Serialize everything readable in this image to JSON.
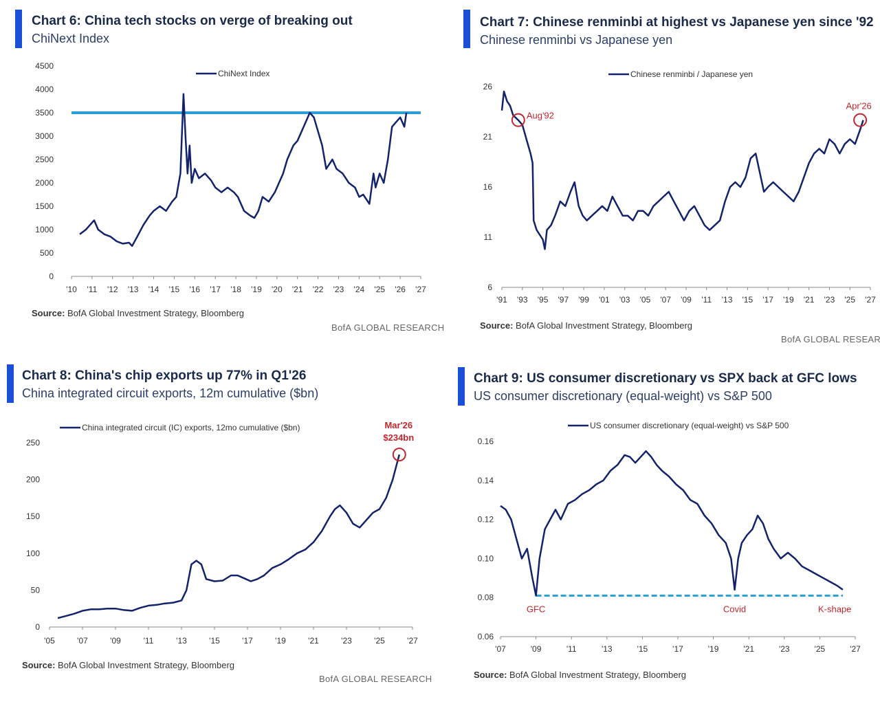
{
  "charts": [
    {
      "title": "Chart 6:  China tech stocks on verge of breaking out",
      "subtitle": "ChiNext Index",
      "source_label": "Source:",
      "source_text": "BofA Global Investment Strategy, Bloomberg",
      "brand": "BofA GLOBAL RESEARCH"
    },
    {
      "title": "Chart 7: Chinese renminbi at highest vs Japanese yen since '92",
      "subtitle": "Chinese renminbi vs Japanese yen",
      "source_label": "Source:",
      "source_text": "BofA Global Investment Strategy, Bloomberg",
      "brand": "BofA GLOBAL RESEARCH"
    },
    {
      "title": "Chart 8: China's chip exports up 77% in Q1'26",
      "subtitle": "China integrated circuit exports, 12m cumulative ($bn)",
      "source_label": "Source:",
      "source_text": "BofA Global Investment Strategy, Bloomberg",
      "brand": "BofA GLOBAL RESEARCH"
    },
    {
      "title": "Chart 9: US consumer discretionary vs SPX back at GFC lows",
      "subtitle": "US consumer discretionary (equal-weight) vs S&P 500",
      "source_label": "Source:",
      "source_text": "BofA Global Investment Strategy, Bloomberg",
      "brand": ""
    }
  ],
  "colors": {
    "line": "#12236b",
    "reference_line": "#2a9fd6",
    "dashed_line": "#2a9fd6",
    "annotation": "#c0262d",
    "title_bar": "#1b4fd6"
  },
  "chart_data": [
    {
      "type": "line",
      "series": [
        {
          "name": "ChiNext Index",
          "x": [
            2010.4,
            2010.7,
            2010.9,
            2011.1,
            2011.3,
            2011.6,
            2011.9,
            2012.2,
            2012.5,
            2012.8,
            2012.95,
            2013.2,
            2013.5,
            2013.8,
            2014.0,
            2014.3,
            2014.6,
            2014.9,
            2015.1,
            2015.3,
            2015.45,
            2015.55,
            2015.65,
            2015.75,
            2015.85,
            2016.0,
            2016.2,
            2016.5,
            2016.8,
            2017.0,
            2017.3,
            2017.6,
            2017.9,
            2018.1,
            2018.4,
            2018.7,
            2018.9,
            2019.1,
            2019.3,
            2019.6,
            2019.9,
            2020.1,
            2020.3,
            2020.5,
            2020.8,
            2021.0,
            2021.3,
            2021.6,
            2021.8,
            2022.0,
            2022.2,
            2022.4,
            2022.7,
            2022.9,
            2023.2,
            2023.5,
            2023.8,
            2024.0,
            2024.2,
            2024.5,
            2024.7,
            2024.8,
            2025.0,
            2025.2,
            2025.4,
            2025.6,
            2025.8,
            2026.0,
            2026.2,
            2026.3
          ],
          "y": [
            900,
            1000,
            1100,
            1200,
            1000,
            900,
            850,
            750,
            700,
            720,
            650,
            850,
            1100,
            1300,
            1400,
            1500,
            1400,
            1600,
            1700,
            2200,
            3900,
            3000,
            2200,
            2800,
            2000,
            2300,
            2100,
            2200,
            2050,
            1900,
            1800,
            1900,
            1800,
            1700,
            1400,
            1300,
            1250,
            1400,
            1700,
            1600,
            1800,
            2000,
            2200,
            2500,
            2800,
            2900,
            3200,
            3500,
            3400,
            3100,
            2800,
            2300,
            2500,
            2300,
            2200,
            2000,
            1900,
            1700,
            1750,
            1550,
            2200,
            1900,
            2200,
            2000,
            2500,
            3200,
            3300,
            3400,
            3200,
            3500
          ]
        }
      ],
      "reference_line": 3500,
      "ylim": [
        0,
        4500
      ],
      "yticks": [
        "4500",
        "4000",
        "3500",
        "3000",
        "2500",
        "2000",
        "1500",
        "1000",
        "500",
        "0"
      ],
      "xlim": [
        2010,
        2027
      ],
      "xticks": [
        "'10",
        "'11",
        "'12",
        "'13",
        "'14",
        "'15",
        "'16",
        "'17",
        "'18",
        "'19",
        "'20",
        "'21",
        "'22",
        "'23",
        "'24",
        "'25",
        "'26",
        "'27"
      ],
      "legend": "top-center",
      "grid": false,
      "annotations": []
    },
    {
      "type": "line",
      "series": [
        {
          "name": "Chinese renminbi / Japanese yen",
          "x": [
            1991.0,
            1991.2,
            1991.5,
            1991.8,
            1992.1,
            1992.6,
            1993.0,
            1993.4,
            1993.8,
            1994.0,
            1994.1,
            1994.4,
            1994.7,
            1995.0,
            1995.2,
            1995.4,
            1995.8,
            1996.2,
            1996.7,
            1997.2,
            1997.7,
            1998.1,
            1998.5,
            1998.9,
            1999.3,
            1999.8,
            2000.3,
            2000.8,
            2001.3,
            2001.8,
            2002.3,
            2002.8,
            2003.3,
            2003.8,
            2004.3,
            2004.8,
            2005.3,
            2005.8,
            2006.3,
            2006.8,
            2007.3,
            2007.8,
            2008.3,
            2008.8,
            2009.3,
            2009.8,
            2010.3,
            2010.8,
            2011.3,
            2011.8,
            2012.3,
            2012.8,
            2013.3,
            2013.8,
            2014.3,
            2014.8,
            2015.3,
            2015.8,
            2016.2,
            2016.6,
            2017.0,
            2017.5,
            2018.0,
            2018.5,
            2019.0,
            2019.5,
            2020.0,
            2020.5,
            2021.0,
            2021.5,
            2022.0,
            2022.5,
            2023.0,
            2023.5,
            2024.0,
            2024.5,
            2025.0,
            2025.5,
            2026.0,
            2026.3
          ],
          "y": [
            24.5,
            26.5,
            25.5,
            25.0,
            24.0,
            23.5,
            23.0,
            21.5,
            20.0,
            19.0,
            13.0,
            12.0,
            11.5,
            11.0,
            10.0,
            12.0,
            12.5,
            13.5,
            15.0,
            14.5,
            16.0,
            17.0,
            14.5,
            13.5,
            13.0,
            13.5,
            14.0,
            14.5,
            14.0,
            15.5,
            14.5,
            13.5,
            13.5,
            13.0,
            14.0,
            14.0,
            13.5,
            14.5,
            15.0,
            15.5,
            16.0,
            15.0,
            14.0,
            13.0,
            14.0,
            14.5,
            13.5,
            12.5,
            12.0,
            12.5,
            13.0,
            15.0,
            16.5,
            17.0,
            16.5,
            17.5,
            19.5,
            20.0,
            18.0,
            16.0,
            16.5,
            17.0,
            16.5,
            16.0,
            15.5,
            15.0,
            16.0,
            17.5,
            19.0,
            20.0,
            20.5,
            20.0,
            21.5,
            21.0,
            20.0,
            21.0,
            21.5,
            21.0,
            22.5,
            23.5
          ]
        }
      ],
      "ylim": [
        6,
        27
      ],
      "yticks": [
        "26",
        "21",
        "16",
        "11",
        "6"
      ],
      "xlim": [
        1991,
        2027
      ],
      "xticks": [
        "'91",
        "'93",
        "'95",
        "'97",
        "'99",
        "'01",
        "'03",
        "'05",
        "'07",
        "'09",
        "'11",
        "'13",
        "'15",
        "'17",
        "'19",
        "'21",
        "'23",
        "'25",
        "'27"
      ],
      "legend": "top-center",
      "grid": false,
      "annotations": [
        {
          "label": "Aug'92",
          "x": 1992.6,
          "y": 23.5
        },
        {
          "label": "Apr'26",
          "x": 2026.0,
          "y": 23.5
        }
      ]
    },
    {
      "type": "line",
      "series": [
        {
          "name": "China integrated circuit (IC) exports, 12mo cumulative ($bn)",
          "x": [
            2005.5,
            2006.0,
            2006.5,
            2007.0,
            2007.5,
            2008.0,
            2008.5,
            2009.0,
            2009.5,
            2010.0,
            2010.5,
            2011.0,
            2011.5,
            2012.0,
            2012.5,
            2013.0,
            2013.3,
            2013.6,
            2013.9,
            2014.2,
            2014.5,
            2015.0,
            2015.5,
            2016.0,
            2016.4,
            2016.8,
            2017.2,
            2017.6,
            2018.0,
            2018.5,
            2019.0,
            2019.5,
            2020.0,
            2020.5,
            2021.0,
            2021.5,
            2022.0,
            2022.3,
            2022.6,
            2023.0,
            2023.4,
            2023.8,
            2024.2,
            2024.6,
            2025.0,
            2025.4,
            2025.8,
            2026.2
          ],
          "y": [
            12,
            15,
            18,
            22,
            24,
            24,
            25,
            25,
            23,
            22,
            26,
            29,
            30,
            32,
            33,
            36,
            50,
            85,
            90,
            85,
            65,
            62,
            63,
            70,
            70,
            66,
            62,
            65,
            70,
            80,
            85,
            92,
            100,
            105,
            115,
            130,
            150,
            160,
            165,
            155,
            140,
            135,
            145,
            155,
            160,
            175,
            200,
            234
          ]
        }
      ],
      "ylim": [
        0,
        250
      ],
      "yticks": [
        "250",
        "200",
        "150",
        "100",
        "50",
        "0"
      ],
      "xlim": [
        2005,
        2027
      ],
      "xticks": [
        "'05",
        "'07",
        "'09",
        "'11",
        "'13",
        "'15",
        "'17",
        "'19",
        "'21",
        "'23",
        "'25",
        "'27"
      ],
      "legend": "top-center",
      "grid": false,
      "annotations": [
        {
          "label": "Mar'26",
          "label2": "$234bn",
          "x": 2026.2,
          "y": 234
        }
      ]
    },
    {
      "type": "line",
      "series": [
        {
          "name": "US consumer discretionary (equal-weight) vs S&P 500",
          "x": [
            2007.0,
            2007.3,
            2007.6,
            2007.9,
            2008.2,
            2008.5,
            2008.8,
            2009.0,
            2009.2,
            2009.5,
            2009.8,
            2010.1,
            2010.4,
            2010.8,
            2011.2,
            2011.6,
            2012.0,
            2012.4,
            2012.8,
            2013.2,
            2013.6,
            2014.0,
            2014.3,
            2014.6,
            2014.9,
            2015.2,
            2015.5,
            2015.8,
            2016.1,
            2016.5,
            2016.9,
            2017.3,
            2017.7,
            2018.1,
            2018.5,
            2018.9,
            2019.3,
            2019.7,
            2020.0,
            2020.2,
            2020.4,
            2020.6,
            2020.9,
            2021.2,
            2021.5,
            2021.8,
            2022.1,
            2022.4,
            2022.8,
            2023.2,
            2023.6,
            2024.0,
            2024.4,
            2024.8,
            2025.2,
            2025.6,
            2026.0,
            2026.3
          ],
          "y": [
            0.127,
            0.125,
            0.12,
            0.11,
            0.1,
            0.105,
            0.09,
            0.081,
            0.1,
            0.115,
            0.12,
            0.125,
            0.12,
            0.128,
            0.13,
            0.133,
            0.135,
            0.138,
            0.14,
            0.145,
            0.148,
            0.153,
            0.152,
            0.149,
            0.152,
            0.155,
            0.152,
            0.148,
            0.145,
            0.142,
            0.138,
            0.135,
            0.13,
            0.128,
            0.122,
            0.118,
            0.112,
            0.108,
            0.1,
            0.084,
            0.1,
            0.108,
            0.112,
            0.115,
            0.122,
            0.118,
            0.11,
            0.105,
            0.1,
            0.103,
            0.1,
            0.096,
            0.094,
            0.092,
            0.09,
            0.088,
            0.086,
            0.084
          ]
        }
      ],
      "reference_line": 0.081,
      "ylim": [
        0.06,
        0.16
      ],
      "yticks": [
        "0.16",
        "0.14",
        "0.12",
        "0.10",
        "0.08",
        "0.06"
      ],
      "xlim": [
        2007,
        2027
      ],
      "xticks": [
        "'07",
        "'09",
        "'11",
        "'13",
        "'15",
        "'17",
        "'19",
        "'21",
        "'23",
        "'25",
        "'27"
      ],
      "legend": "top-center",
      "grid": false,
      "annotations": [
        {
          "label": "GFC",
          "x": 2009.0,
          "y": 0.081
        },
        {
          "label": "Covid",
          "x": 2020.2,
          "y": 0.081
        },
        {
          "label": "K-shape",
          "x": 2026.0,
          "y": 0.081
        }
      ]
    }
  ]
}
